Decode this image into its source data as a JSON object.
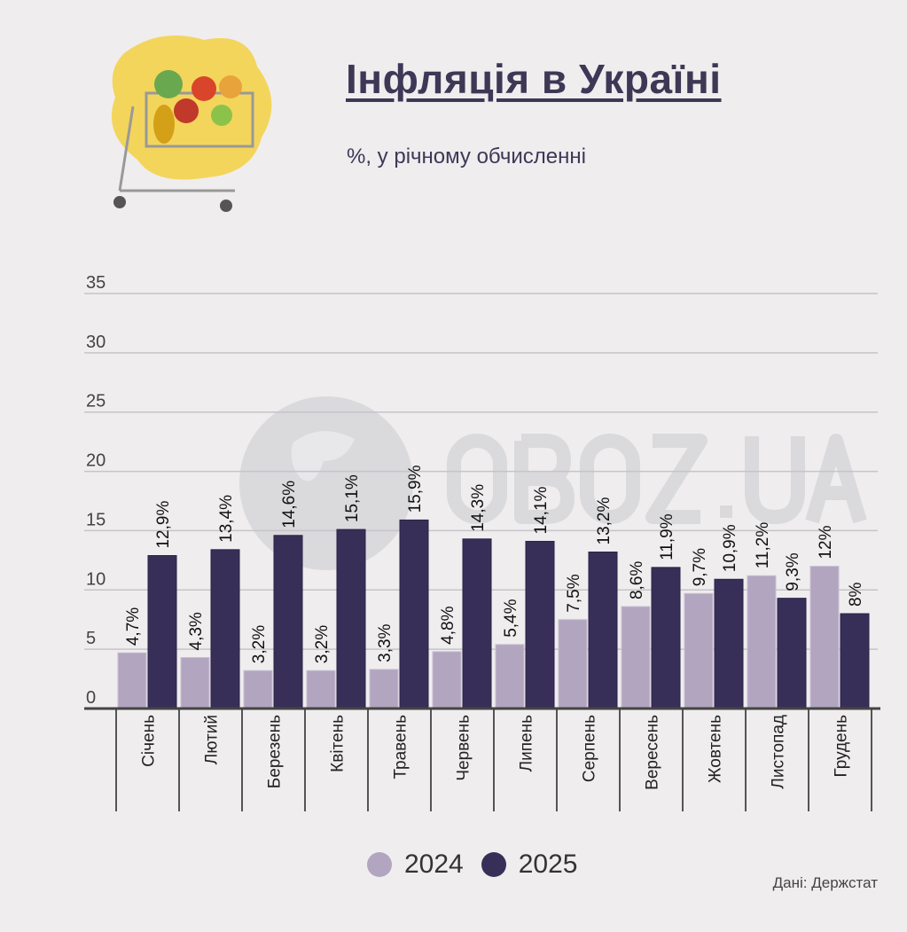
{
  "header": {
    "title": "Інфляція в Україні",
    "subtitle": "%, у річному обчисленні"
  },
  "watermark": "OBOZ.UA",
  "source": "Дані: Держстат",
  "colors": {
    "series_2024": "#b2a5c0",
    "series_2025": "#382f59",
    "background": "#efedee"
  },
  "chart_data": {
    "type": "bar",
    "title": "Інфляція в Україні",
    "subtitle": "%, у річному обчисленні",
    "categories": [
      "Січень",
      "Лютий",
      "Березень",
      "Квітень",
      "Травень",
      "Червень",
      "Липень",
      "Серпень",
      "Вересень",
      "Жовтень",
      "Листопад",
      "Грудень"
    ],
    "series": [
      {
        "name": "2024",
        "values": [
          4.7,
          4.3,
          3.2,
          3.2,
          3.3,
          4.8,
          5.4,
          7.5,
          8.6,
          9.7,
          11.2,
          12
        ],
        "labels": [
          "4,7%",
          "4,3%",
          "3,2%",
          "3,2%",
          "3,3%",
          "4,8%",
          "5,4%",
          "7,5%",
          "8,6%",
          "9,7%",
          "11,2%",
          "12%"
        ]
      },
      {
        "name": "2025",
        "values": [
          12.9,
          13.4,
          14.6,
          15.1,
          15.9,
          14.3,
          14.1,
          13.2,
          11.9,
          10.9,
          9.3,
          8
        ],
        "labels": [
          "12,9%",
          "13,4%",
          "14,6%",
          "15,1%",
          "15,9%",
          "14,3%",
          "14,1%",
          "13,2%",
          "11,9%",
          "10,9%",
          "9,3%",
          "8%"
        ]
      }
    ],
    "yticks": [
      "0",
      "5",
      "10",
      "15",
      "20",
      "25",
      "30",
      "35"
    ],
    "ylim": [
      0,
      35
    ],
    "grid": true,
    "legend": "bottom"
  }
}
